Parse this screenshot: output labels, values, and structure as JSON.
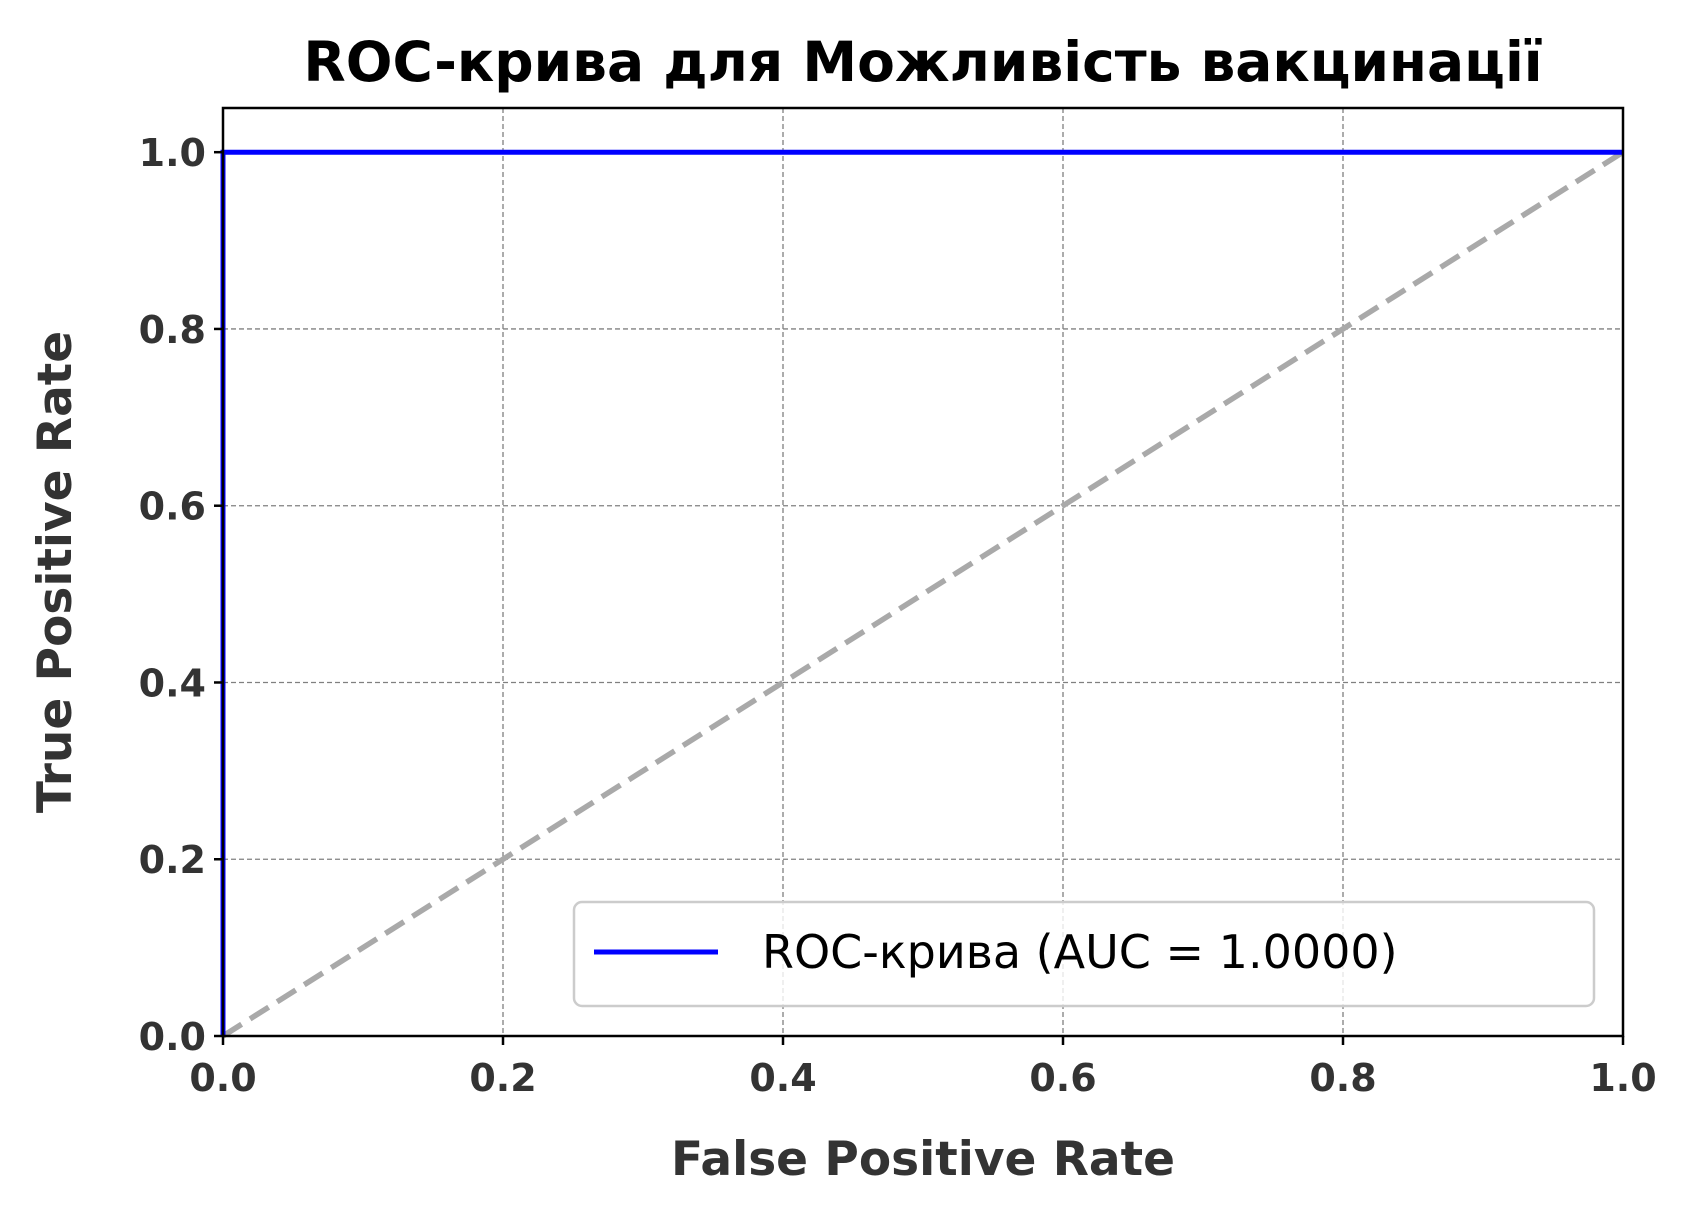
{
  "chart_data": {
    "type": "line",
    "title": "ROC-крива для Можливість вакцинації",
    "xlabel": "False Positive Rate",
    "ylabel": "True Positive Rate",
    "xlim": [
      0.0,
      1.0
    ],
    "ylim": [
      0.0,
      1.05
    ],
    "xticks": [
      0.0,
      0.2,
      0.4,
      0.6,
      0.8,
      1.0
    ],
    "yticks": [
      0.0,
      0.2,
      0.4,
      0.6,
      0.8,
      1.0
    ],
    "xtick_labels": [
      "0.0",
      "0.2",
      "0.4",
      "0.6",
      "0.8",
      "1.0"
    ],
    "ytick_labels": [
      "0.0",
      "0.2",
      "0.4",
      "0.6",
      "0.8",
      "1.0"
    ],
    "grid": true,
    "legend_position": "lower-right",
    "series": [
      {
        "name": "ROC-крива (AUC = 1.0000)",
        "color": "#0000ff",
        "style": "solid",
        "x": [
          0.0,
          0.0,
          1.0
        ],
        "y": [
          0.0,
          1.0,
          1.0
        ]
      },
      {
        "color": "#a9a9a9",
        "style": "dashed",
        "x": [
          0.0,
          1.0
        ],
        "y": [
          0.0,
          1.0
        ]
      }
    ]
  }
}
